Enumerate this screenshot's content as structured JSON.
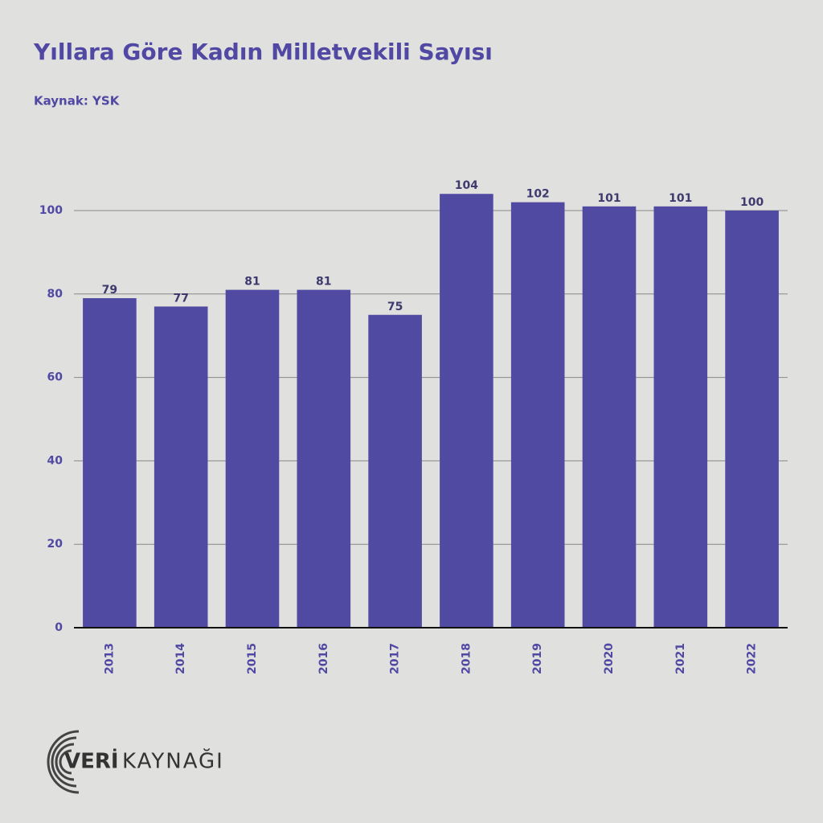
{
  "chart_data": {
    "type": "bar",
    "title": "Yıllara Göre Kadın Milletvekili Sayısı",
    "subtitle": "Kaynak: YSK",
    "categories": [
      "2013",
      "2014",
      "2015",
      "2016",
      "2017",
      "2018",
      "2019",
      "2020",
      "2021",
      "2022"
    ],
    "values": [
      79,
      77,
      81,
      81,
      75,
      104,
      102,
      101,
      101,
      100
    ],
    "color": "#514aa3",
    "ylim": [
      0,
      100
    ],
    "yticks": [
      0,
      20,
      40,
      60,
      80,
      100
    ],
    "grid": true
  },
  "logo": {
    "brand": "VERİ",
    "name": "KAYNAĞI"
  }
}
